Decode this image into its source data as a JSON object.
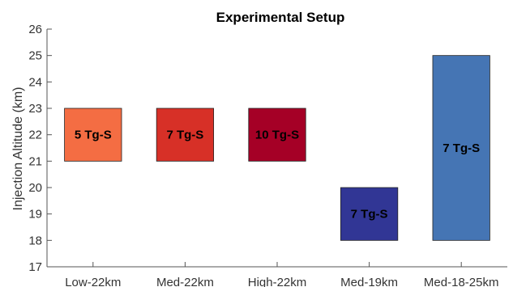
{
  "chart_data": {
    "type": "bar",
    "title": "Experimental Setup",
    "ylabel": "Injection Altitude (km)",
    "xlabel": "",
    "ylim": [
      17,
      26
    ],
    "yticks": [
      17,
      18,
      19,
      20,
      21,
      22,
      23,
      24,
      25,
      26
    ],
    "categories": [
      "Low-22km",
      "Med-22km",
      "High-22km",
      "Med-19km",
      "Med-18-25km"
    ],
    "bars": [
      {
        "category": "Low-22km",
        "bottom": 21,
        "top": 23,
        "label": "5 Tg-S",
        "color": "#f46d43"
      },
      {
        "category": "Med-22km",
        "bottom": 21,
        "top": 23,
        "label": "7 Tg-S",
        "color": "#d73027"
      },
      {
        "category": "High-22km",
        "bottom": 21,
        "top": 23,
        "label": "10 Tg-S",
        "color": "#a50026"
      },
      {
        "category": "Med-19km",
        "bottom": 18,
        "top": 20,
        "label": "7 Tg-S",
        "color": "#313695"
      },
      {
        "category": "Med-18-25km",
        "bottom": 18,
        "top": 25,
        "label": "7 Tg-S",
        "color": "#4575b4"
      }
    ],
    "grid": false,
    "legend": "none"
  }
}
